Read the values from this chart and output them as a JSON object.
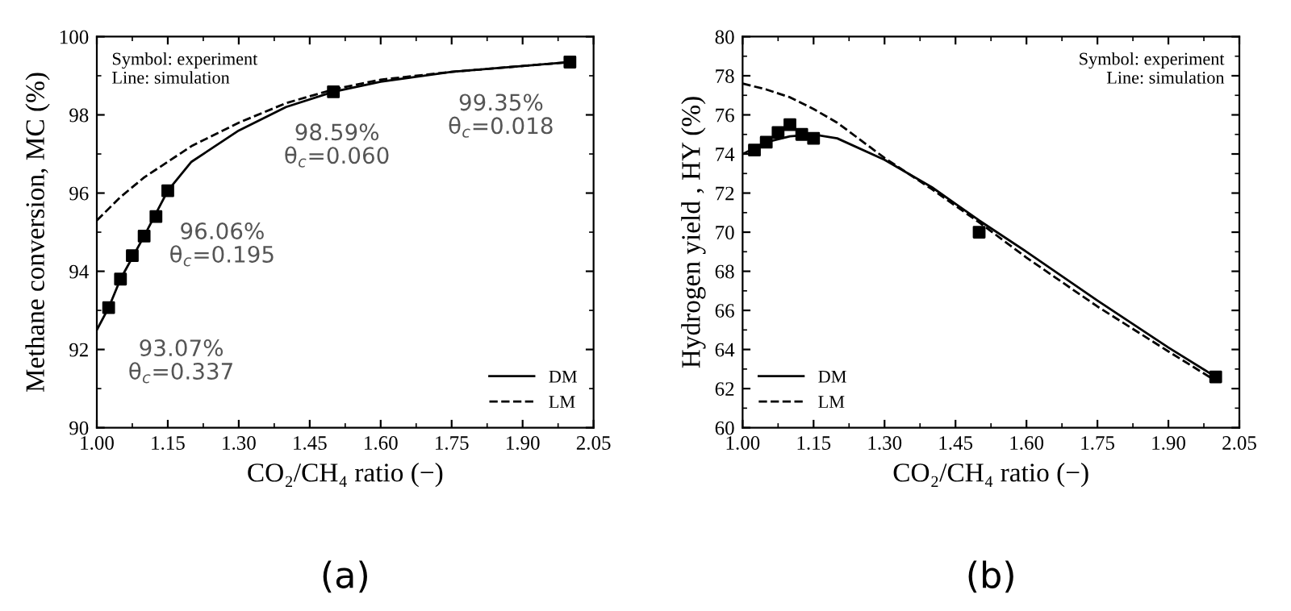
{
  "chart_data": [
    {
      "type": "line",
      "title": "(a)",
      "xlabel": "CO₂/CH₄ ratio (−)",
      "ylabel": "Methane conversion, MC (%)",
      "xlim": [
        1.0,
        2.05
      ],
      "xticks": [
        {
          "value": 1.0,
          "label": "1.00"
        },
        {
          "value": 1.15,
          "label": "1.15"
        },
        {
          "value": 1.3,
          "label": "1.30"
        },
        {
          "value": 1.45,
          "label": "1.45"
        },
        {
          "value": 1.6,
          "label": "1.60"
        },
        {
          "value": 1.75,
          "label": "1.75"
        },
        {
          "value": 1.9,
          "label": "1.90"
        },
        {
          "value": 2.05,
          "label": "2.05"
        }
      ],
      "ylim": [
        90,
        100
      ],
      "yticks": [
        90,
        92,
        94,
        96,
        98,
        100
      ],
      "grid": false,
      "legend": "bottom right",
      "series": [
        {
          "name": "DM",
          "type": "line",
          "line_style": "solid",
          "color": "#000000",
          "x": [
            1.0,
            1.025,
            1.05,
            1.1,
            1.15,
            1.2,
            1.3,
            1.4,
            1.5,
            1.6,
            1.75,
            1.9,
            2.0
          ],
          "values": [
            92.5,
            93.07,
            93.8,
            94.9,
            96.06,
            96.8,
            97.6,
            98.2,
            98.59,
            98.85,
            99.1,
            99.25,
            99.35
          ]
        },
        {
          "name": "LM",
          "type": "line",
          "line_style": "dashed",
          "color": "#000000",
          "x": [
            1.0,
            1.05,
            1.1,
            1.15,
            1.2,
            1.3,
            1.4,
            1.5,
            1.6,
            1.75,
            1.9,
            2.0
          ],
          "values": [
            95.3,
            95.9,
            96.4,
            96.8,
            97.2,
            97.8,
            98.3,
            98.65,
            98.9,
            99.1,
            99.25,
            99.35
          ]
        },
        {
          "type": "scatter",
          "marker": "square",
          "color": "#000000",
          "x": [
            1.025,
            1.05,
            1.075,
            1.1,
            1.125,
            1.15,
            1.5,
            2.0
          ],
          "values": [
            93.07,
            93.8,
            94.4,
            94.9,
            95.4,
            96.06,
            98.59,
            99.35
          ]
        }
      ],
      "annotations": [
        "Symbol: experiment\nLine: simulation",
        {
          "text": "93.07%\nθ$_{c}$=0.337",
          "x": 1.025,
          "y": 93.07
        },
        {
          "text": "96.06%\nθ$_{c}$=0.195",
          "x": 1.15,
          "y": 96.06
        },
        {
          "text": "98.59%\nθ$_{c}$=0.060",
          "x": 1.5,
          "y": 98.59
        },
        {
          "text": "99.35%\nθ$_{c}$=0.018",
          "x": 2.0,
          "y": 99.35
        }
      ]
    },
    {
      "type": "line",
      "title": "(b)",
      "xlabel": "CO₂/CH₄ ratio (−)",
      "ylabel": "Hydrogen yield , HY (%)",
      "xlim": [
        1.0,
        2.05
      ],
      "xticks": [
        {
          "value": 1.0,
          "label": "1.00"
        },
        {
          "value": 1.15,
          "label": "1.15"
        },
        {
          "value": 1.3,
          "label": "1.30"
        },
        {
          "value": 1.45,
          "label": "1.45"
        },
        {
          "value": 1.6,
          "label": "1.60"
        },
        {
          "value": 1.75,
          "label": "1.75"
        },
        {
          "value": 1.9,
          "label": "1.90"
        },
        {
          "value": 2.05,
          "label": "2.05"
        }
      ],
      "ylim": [
        60,
        80
      ],
      "yticks": [
        60,
        62,
        64,
        66,
        68,
        70,
        72,
        74,
        76,
        78,
        80
      ],
      "grid": false,
      "legend": "bottom left",
      "series": [
        {
          "name": "DM",
          "type": "line",
          "line_style": "solid",
          "color": "#000000",
          "x": [
            1.0,
            1.05,
            1.1,
            1.15,
            1.2,
            1.3,
            1.4,
            1.5,
            1.6,
            1.75,
            1.9,
            2.0
          ],
          "values": [
            74.0,
            74.6,
            74.9,
            75.0,
            74.8,
            73.7,
            72.3,
            70.6,
            69.0,
            66.5,
            64.1,
            62.6
          ]
        },
        {
          "name": "LM",
          "type": "line",
          "line_style": "dashed",
          "color": "#000000",
          "x": [
            1.0,
            1.05,
            1.1,
            1.15,
            1.2,
            1.3,
            1.4,
            1.5,
            1.6,
            1.75,
            1.9,
            2.0
          ],
          "values": [
            77.6,
            77.3,
            76.9,
            76.3,
            75.6,
            73.8,
            72.2,
            70.5,
            68.7,
            66.2,
            63.9,
            62.4
          ]
        },
        {
          "type": "scatter",
          "marker": "square",
          "color": "#000000",
          "x": [
            1.025,
            1.05,
            1.075,
            1.1,
            1.125,
            1.15,
            1.5,
            2.0
          ],
          "values": [
            74.2,
            74.6,
            75.1,
            75.5,
            75.0,
            74.8,
            70.0,
            62.6
          ]
        }
      ],
      "annotations": [
        "Symbol: experiment\nLine: simulation"
      ]
    }
  ]
}
